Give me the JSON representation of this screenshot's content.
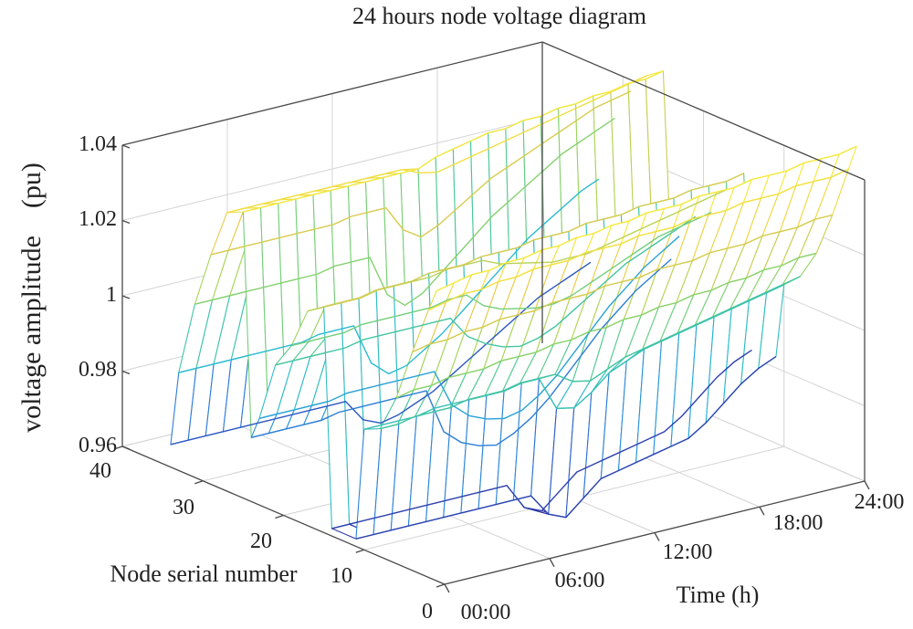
{
  "chart_data": {
    "type": "surface3d",
    "title": "24 hours node voltage diagram",
    "xlabel": "Time (h)",
    "ylabel": "Node serial number",
    "zlabel": "voltage amplitude　(pu)",
    "x_ticks": [
      "00:00",
      "06:00",
      "12:00",
      "18:00",
      "24:00"
    ],
    "y_ticks": [
      "0",
      "10",
      "20",
      "30",
      "40"
    ],
    "z_ticks": [
      "0.96",
      "0.98",
      "1",
      "1.02",
      "1.04"
    ],
    "xlim": [
      0,
      24
    ],
    "ylim": [
      0,
      40
    ],
    "zlim": [
      0.96,
      1.04
    ],
    "colormap": [
      "#2b2b9a",
      "#2f6fd6",
      "#25b8d8",
      "#48c79a",
      "#a6d65a",
      "#e8c84a",
      "#f5e93e"
    ],
    "grid": true,
    "surface": {
      "hours": [
        0,
        1,
        2,
        3,
        4,
        5,
        6,
        7,
        8,
        9,
        10,
        11,
        12,
        13,
        14,
        15,
        16,
        17,
        18,
        19,
        20,
        21,
        22,
        23,
        24
      ],
      "series": [
        {
          "name": "node 1",
          "node": 1,
          "values": [
            1.037,
            1.038,
            1.039,
            1.039,
            1.04,
            1.04,
            1.041,
            1.041,
            1.042,
            1.042,
            1.043,
            1.043,
            1.044,
            1.044,
            1.044,
            1.045,
            1.045,
            1.045,
            1.046,
            1.046,
            1.046,
            1.047,
            1.047,
            1.047,
            1.048
          ]
        },
        {
          "name": "node 2",
          "node": 2,
          "values": [
            1.031,
            1.032,
            1.033,
            1.033,
            1.034,
            1.034,
            1.035,
            1.035,
            1.035,
            1.036,
            1.036,
            1.036,
            1.037,
            1.037,
            1.037,
            1.038,
            1.038,
            1.038,
            1.039,
            1.039,
            1.039,
            1.04,
            1.04,
            1.04,
            1.041
          ]
        },
        {
          "name": "node 4",
          "node": 4,
          "values": [
            1.018,
            1.019,
            1.019,
            1.02,
            1.02,
            1.021,
            1.021,
            1.021,
            1.022,
            1.022,
            1.022,
            1.023,
            1.023,
            1.023,
            1.024,
            1.024,
            1.024,
            1.025,
            1.025,
            1.025,
            1.026,
            1.026,
            1.026,
            1.027,
            1.027
          ]
        },
        {
          "name": "node 6",
          "node": 6,
          "values": [
            1.004,
            1.005,
            1.005,
            1.006,
            1.006,
            1.006,
            1.007,
            1.007,
            1.007,
            1.008,
            1.008,
            1.009,
            1.009,
            1.01,
            1.01,
            1.011,
            1.011,
            1.012,
            1.012,
            1.013,
            1.013,
            1.014,
            1.014,
            1.015,
            1.015
          ]
        },
        {
          "name": "node 8",
          "node": 8,
          "values": [
            0.994,
            0.994,
            0.995,
            0.995,
            0.995,
            0.996,
            0.996,
            0.996,
            0.997,
            0.997,
            0.997,
            0.994,
            0.993,
            0.995,
            0.997,
            0.998,
            0.999,
            1.0,
            1.001,
            1.002,
            1.003,
            1.004,
            1.005,
            1.006,
            1.007
          ]
        },
        {
          "name": "node 10",
          "node": 10,
          "values": [
            0.992,
            0.992,
            0.992,
            0.992,
            0.993,
            0.993,
            0.993,
            0.993,
            0.993,
            0.994,
            0.994,
            0.985,
            0.984,
            0.987,
            0.991,
            0.993,
            0.995,
            0.996,
            0.997,
            0.998,
            0.999,
            1.0,
            1.001,
            1.002,
            1.003
          ]
        },
        {
          "name": "node 11",
          "node": 11,
          "values": [
            0.962,
            0.962,
            0.962,
            0.962,
            0.962,
            0.962,
            0.962,
            0.962,
            0.962,
            0.962,
            0.962,
            0.956,
            0.954,
            0.958,
            0.962,
            0.963,
            0.964,
            0.965,
            0.966,
            0.967,
            0.97,
            0.974,
            0.978,
            0.981,
            0.983
          ]
        },
        {
          "name": "node 14",
          "node": 14,
          "values": [
            0.962,
            0.962,
            0.962,
            0.962,
            0.962,
            0.962,
            0.962,
            0.962,
            0.962,
            0.962,
            0.962,
            0.955,
            0.953,
            0.957,
            0.961,
            0.962,
            0.963,
            0.964,
            0.965,
            0.966,
            0.969,
            0.973,
            0.977,
            0.98,
            0.982
          ]
        },
        {
          "name": "node 15",
          "node": 15,
          "values": [
            1.02,
            1.02,
            1.02,
            1.021,
            1.021,
            1.021,
            1.022,
            1.022,
            1.022,
            1.023,
            1.023,
            1.023,
            1.024,
            1.024,
            1.024,
            1.025,
            1.025,
            1.025,
            1.026,
            1.026,
            1.026,
            1.027,
            1.027,
            1.027,
            1.028
          ]
        },
        {
          "name": "node 17",
          "node": 17,
          "values": [
            1.017,
            1.017,
            1.017,
            1.017,
            1.018,
            1.018,
            1.018,
            1.018,
            1.019,
            1.019,
            1.019,
            1.017,
            1.016,
            1.015,
            1.014,
            1.014,
            1.014,
            1.015,
            1.016,
            1.017,
            1.018,
            1.019,
            1.02,
            1.021,
            1.022
          ]
        },
        {
          "name": "node 19",
          "node": 19,
          "values": [
            1.006,
            1.006,
            1.006,
            1.006,
            1.007,
            1.007,
            1.007,
            1.007,
            1.007,
            1.008,
            1.008,
            1.004,
            1.002,
            1.001,
            1.0,
            1.0,
            1.001,
            1.003,
            1.005,
            1.007,
            1.009,
            1.011,
            1.012,
            1.013,
            1.014
          ]
        },
        {
          "name": "node 21",
          "node": 21,
          "values": [
            0.999,
            0.999,
            0.999,
            0.999,
            0.999,
            1.0,
            1.0,
            1.0,
            1.0,
            1.0,
            1.0,
            0.994,
            0.991,
            0.989,
            0.988,
            0.989,
            0.991,
            0.994,
            0.997,
            1.0,
            1.003,
            1.005,
            1.007,
            1.009,
            1.011
          ]
        },
        {
          "name": "node 23",
          "node": 23,
          "values": [
            0.983,
            0.983,
            0.983,
            0.983,
            0.983,
            0.984,
            0.984,
            0.984,
            0.984,
            0.984,
            0.984,
            0.974,
            0.97,
            0.968,
            0.967,
            0.968,
            0.971,
            0.975,
            0.98,
            0.985,
            0.99,
            0.994,
            0.998,
            1.001,
            1.004
          ]
        },
        {
          "name": "node 24",
          "node": 24,
          "values": [
            0.977,
            0.977,
            0.977,
            0.977,
            0.977,
            0.978,
            0.978,
            0.978,
            0.978,
            0.978,
            0.978,
            0.966,
            0.962,
            0.96,
            0.959,
            0.961,
            0.964,
            0.968,
            0.973,
            0.978,
            0.983,
            0.987,
            0.991,
            0.994,
            0.997
          ]
        },
        {
          "name": "node 25",
          "node": 25,
          "values": [
            1.036,
            1.036,
            1.036,
            1.036,
            1.036,
            1.036,
            1.036,
            1.036,
            1.036,
            1.036,
            1.036,
            1.038,
            1.039,
            1.04,
            1.041,
            1.041,
            1.042,
            1.042,
            1.043,
            1.043,
            1.044,
            1.044,
            1.045,
            1.045,
            1.046
          ]
        },
        {
          "name": "node 27",
          "node": 27,
          "values": [
            1.034,
            1.034,
            1.034,
            1.034,
            1.034,
            1.034,
            1.034,
            1.034,
            1.034,
            1.034,
            1.034,
            1.032,
            1.031,
            1.032,
            1.033,
            1.034,
            1.035,
            1.036,
            1.037,
            1.038,
            1.039,
            1.04,
            1.041,
            1.042,
            1.043
          ]
        },
        {
          "name": "node 29",
          "node": 29,
          "values": [
            1.021,
            1.021,
            1.021,
            1.021,
            1.021,
            1.021,
            1.021,
            1.021,
            1.022,
            1.022,
            1.022,
            1.015,
            1.012,
            1.014,
            1.017,
            1.02,
            1.023,
            1.025,
            1.027,
            1.029,
            1.031,
            1.033,
            1.035,
            1.036,
            1.037
          ]
        },
        {
          "name": "node 31",
          "node": 31,
          "values": [
            1.006,
            1.006,
            1.006,
            1.006,
            1.006,
            1.006,
            1.006,
            1.006,
            1.007,
            1.007,
            1.007,
            0.996,
            0.992,
            0.994,
            0.998,
            1.002,
            1.006,
            1.01,
            1.013,
            1.016,
            1.019,
            1.022,
            1.024,
            1.026,
            1.028
          ]
        },
        {
          "name": "node 33",
          "node": 33,
          "values": [
            0.986,
            0.986,
            0.986,
            0.986,
            0.986,
            0.986,
            0.986,
            0.986,
            0.987,
            0.987,
            0.987,
            0.976,
            0.972,
            0.973,
            0.976,
            0.979,
            0.983,
            0.987,
            0.991,
            0.995,
            0.999,
            1.002,
            1.005,
            1.008,
            1.01
          ]
        },
        {
          "name": "node 34",
          "node": 34,
          "values": [
            0.966,
            0.966,
            0.966,
            0.966,
            0.966,
            0.966,
            0.966,
            0.966,
            0.966,
            0.966,
            0.966,
            0.96,
            0.958,
            0.959,
            0.961,
            0.963,
            0.966,
            0.969,
            0.972,
            0.975,
            0.978,
            0.981,
            0.983,
            0.985,
            0.987
          ]
        }
      ]
    }
  }
}
